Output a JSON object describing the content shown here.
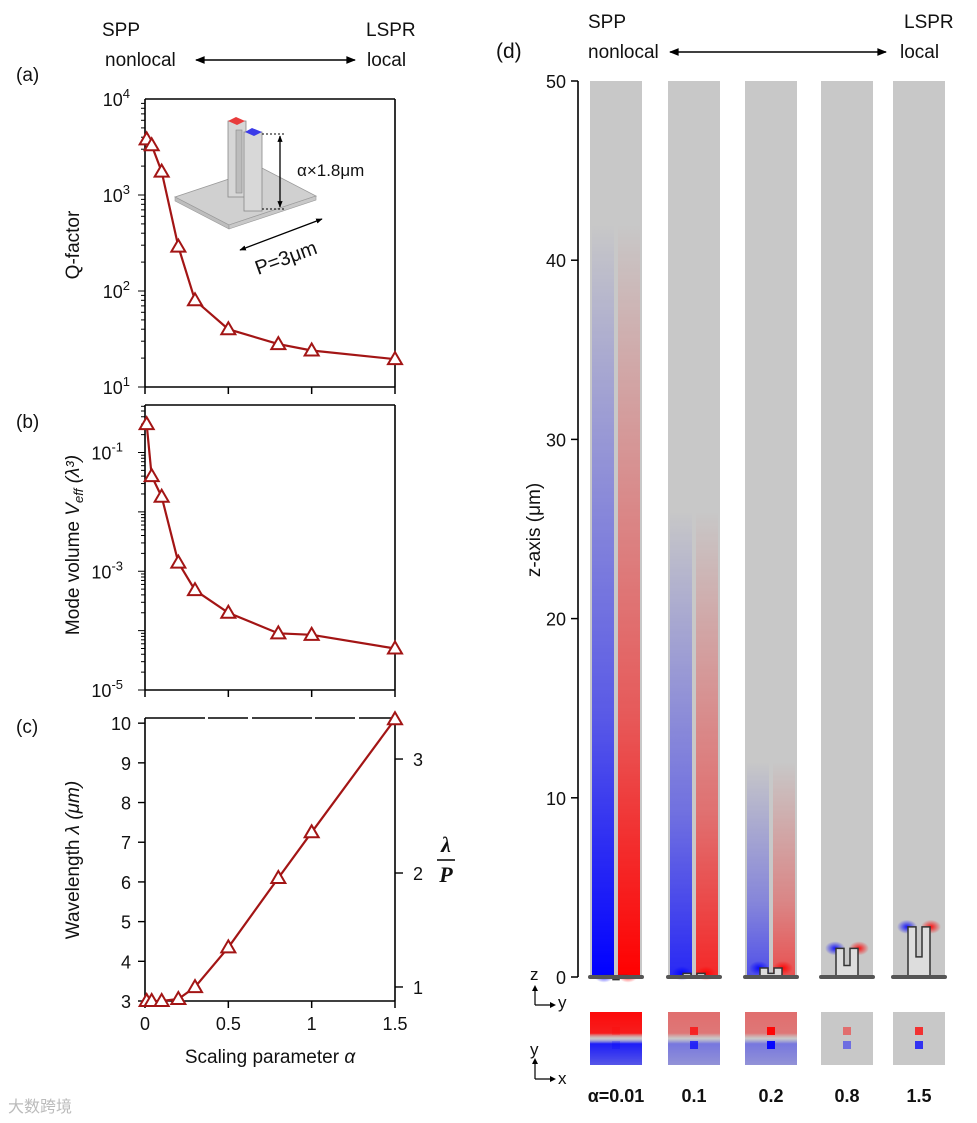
{
  "header_left": {
    "top": "SPP",
    "bottom": "nonlocal",
    "right_top": "LSPR",
    "right_bottom": "local"
  },
  "header_right": {
    "top": "SPP",
    "bottom": "nonlocal",
    "right_top": "LSPR",
    "right_bottom": "local"
  },
  "panel_labels": {
    "a": "(a)",
    "b": "(b)",
    "c": "(c)",
    "d": "(d)"
  },
  "inset": {
    "height_label": "α×1.8μm",
    "period_label": "P=3μm"
  },
  "chart_data": [
    {
      "id": "a",
      "type": "line",
      "yscale": "log",
      "ylabel": "Q-factor",
      "xlabel": "",
      "x": [
        0.01,
        0.04,
        0.1,
        0.2,
        0.3,
        0.5,
        0.8,
        1.0,
        1.5
      ],
      "values": [
        3800,
        3300,
        1750,
        290,
        80,
        40,
        28,
        24,
        19.5
      ],
      "xlim": [
        0,
        1.5
      ],
      "ylim_log10": [
        1,
        4
      ],
      "yticks": [
        {
          "base": "10",
          "exp": "4",
          "v": 4
        },
        {
          "base": "10",
          "exp": "3",
          "v": 3
        },
        {
          "base": "10",
          "exp": "2",
          "v": 2
        },
        {
          "base": "10",
          "exp": "1",
          "v": 1
        }
      ],
      "color": "#a31515"
    },
    {
      "id": "b",
      "type": "line",
      "yscale": "log",
      "ylabel_main": "Mode volume ",
      "ylabel_var": "V",
      "ylabel_sub": "eff",
      "ylabel_unit": " (λ³)",
      "x": [
        0.01,
        0.04,
        0.1,
        0.2,
        0.3,
        0.5,
        0.8,
        1.0,
        1.5
      ],
      "values": [
        0.3,
        0.04,
        0.018,
        0.0014,
        0.00048,
        0.0002,
        9e-05,
        8.5e-05,
        5e-05
      ],
      "xlim": [
        0,
        1.5
      ],
      "ylim_log10": [
        -5,
        -0.2
      ],
      "yticks": [
        {
          "base": "10",
          "exp": "-1",
          "v": -1
        },
        {
          "base": "10",
          "exp": "-3",
          "v": -3
        },
        {
          "base": "10",
          "exp": "-5",
          "v": -5
        }
      ],
      "color": "#a31515"
    },
    {
      "id": "c",
      "type": "line",
      "yscale": "linear",
      "ylabel_main": "Wavelength ",
      "ylabel_var": "λ (μm)",
      "xlabel": "Scaling parameter ",
      "xlabel_var": "α",
      "x": [
        0.01,
        0.04,
        0.1,
        0.2,
        0.3,
        0.5,
        0.8,
        1.0,
        1.5
      ],
      "values": [
        3.0,
        3.0,
        3.0,
        3.05,
        3.35,
        4.35,
        6.1,
        7.25,
        10.1
      ],
      "xlim": [
        0,
        1.5
      ],
      "ylim": [
        3,
        10.13
      ],
      "xticks": [
        "0",
        "0.5",
        "1",
        "1.5"
      ],
      "xtick_values": [
        0,
        0.5,
        1,
        1.5
      ],
      "yticks": [
        "3",
        "4",
        "5",
        "6",
        "7",
        "8",
        "9",
        "10"
      ],
      "ytick_values": [
        3,
        4,
        5,
        6,
        7,
        8,
        9,
        10
      ],
      "y2label_num": "λ",
      "y2label_den": "P",
      "y2lim": [
        0.877,
        3.36
      ],
      "y2ticks": [
        "1",
        "2",
        "3"
      ],
      "y2tick_values": [
        1,
        2,
        3
      ],
      "color": "#a31515"
    }
  ],
  "panel_d": {
    "ylabel": "z-axis (μm)",
    "zticks": [
      "50",
      "40",
      "30",
      "20",
      "10",
      "0"
    ],
    "ztick_values": [
      50,
      40,
      30,
      20,
      10,
      0
    ],
    "zlim": [
      0,
      50
    ],
    "alphas": [
      "α=0.01",
      "0.1",
      "0.2",
      "0.8",
      "1.5"
    ],
    "axes_zy": {
      "v": "z",
      "h": "y"
    },
    "axes_yx": {
      "v": "y",
      "h": "x"
    },
    "colors": {
      "positive": "#ff0000",
      "negative": "#0000ff",
      "background": "#c8c8c8"
    }
  },
  "watermark": "大数跨境"
}
